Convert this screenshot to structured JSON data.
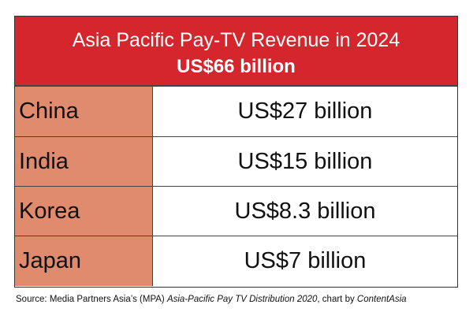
{
  "chart_data": {
    "type": "table",
    "title": "Asia Pacific Pay-TV Revenue in 2024",
    "subtitle": "US$66 billion",
    "rows": [
      {
        "country": "China",
        "value_label": "US$27 billion",
        "value": 27
      },
      {
        "country": "India",
        "value_label": "US$15 billion",
        "value": 15
      },
      {
        "country": "Korea",
        "value_label": "US$8.3 billion",
        "value": 8.3
      },
      {
        "country": "Japan",
        "value_label": "US$7 billion",
        "value": 7
      }
    ],
    "unit": "US$ billion"
  },
  "source": {
    "prefix": "Source: Media Partners Asia’s (MPA) ",
    "publication": "Asia-Pacific Pay TV Distribution 2020",
    "credit": ", chart by ",
    "publisher": "ContentAsia"
  },
  "colors": {
    "header_bg": "#d4262c",
    "country_cell_bg": "#e08a6e"
  }
}
